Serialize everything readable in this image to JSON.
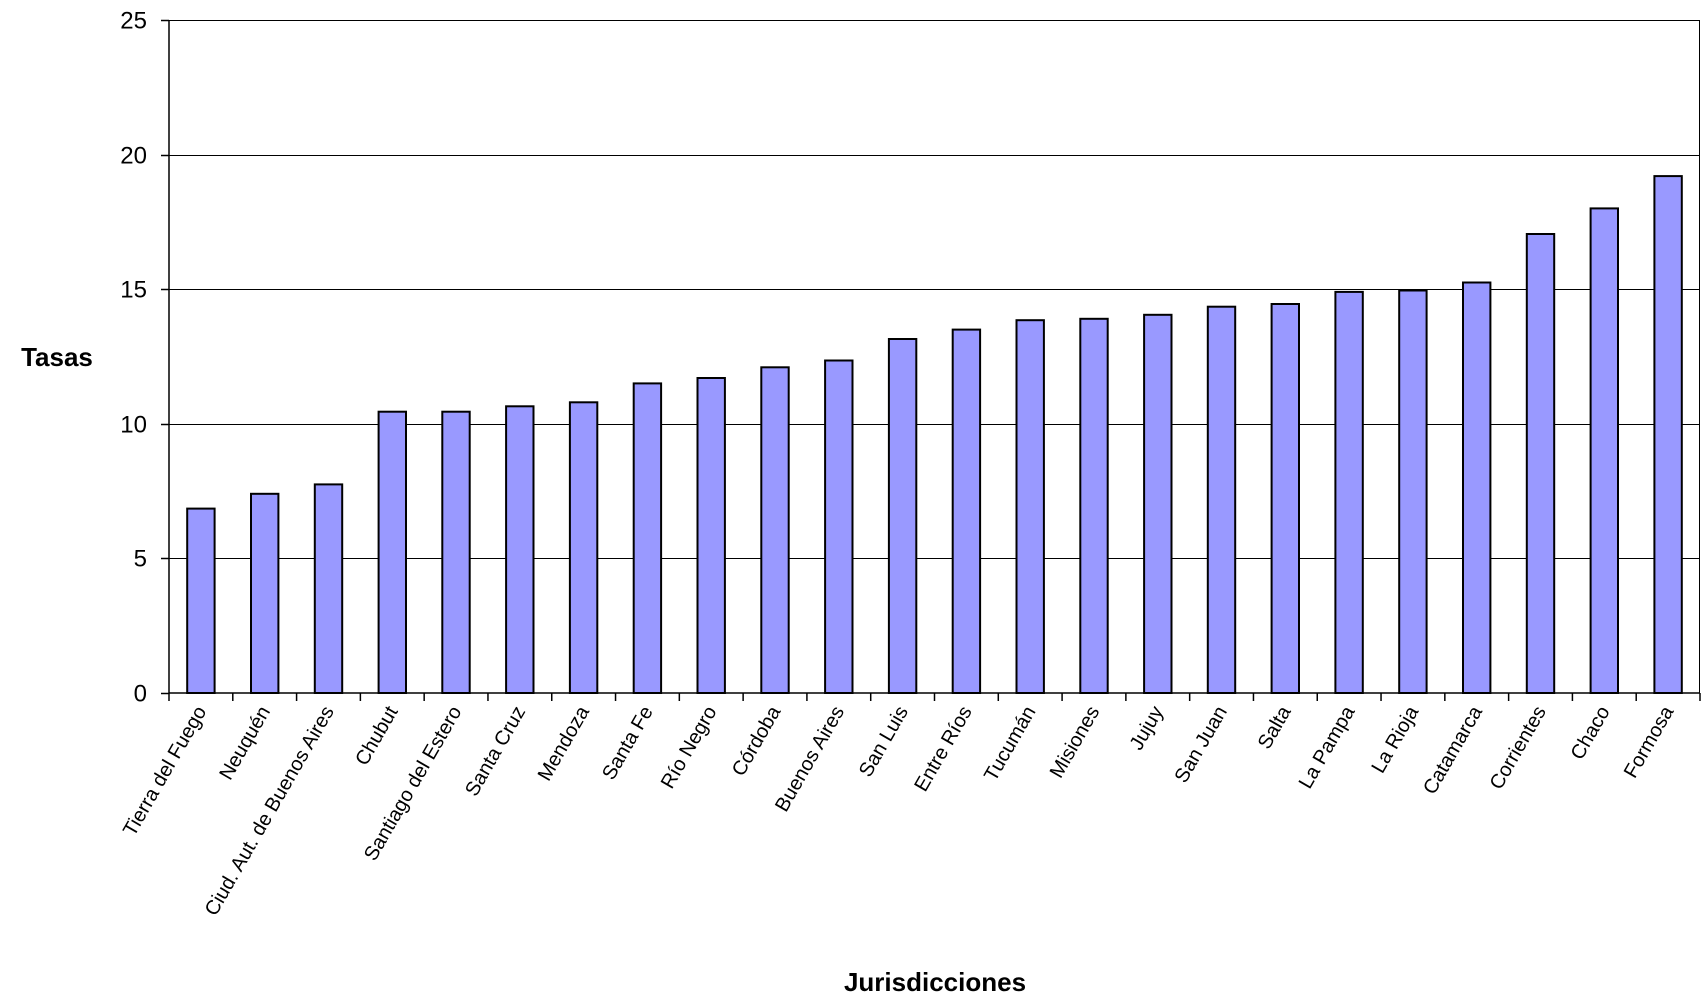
{
  "chart_data": {
    "type": "bar",
    "title": "",
    "xlabel": "Jurisdicciones",
    "ylabel": "Tasas",
    "ylim": [
      0,
      25
    ],
    "yticks": [
      0,
      5,
      10,
      15,
      20,
      25
    ],
    "grid": true,
    "bar_color": "#9999ff",
    "bar_edge_color": "#000000",
    "categories": [
      "Tierra del Fuego",
      "Neuquén",
      "Ciud. Aut. de  Buenos Aires",
      "Chubut",
      "Santiago del Estero",
      "Santa Cruz",
      "Mendoza",
      "Santa Fe",
      "Río Negro",
      "Córdoba",
      "Buenos Aires",
      "San Luis",
      "Entre Ríos",
      "Tucumán",
      "Misiones",
      "Jujuy",
      "San Juan",
      "Salta",
      "La Pampa",
      "La Rioja",
      "Catamarca",
      "Corrientes",
      "Chaco",
      "Formosa"
    ],
    "values": [
      6.85,
      7.4,
      7.75,
      10.45,
      10.45,
      10.65,
      10.8,
      11.5,
      11.7,
      12.1,
      12.35,
      13.15,
      13.5,
      13.85,
      13.9,
      14.05,
      14.35,
      14.45,
      14.9,
      14.95,
      15.25,
      17.05,
      18.0,
      19.2
    ]
  }
}
